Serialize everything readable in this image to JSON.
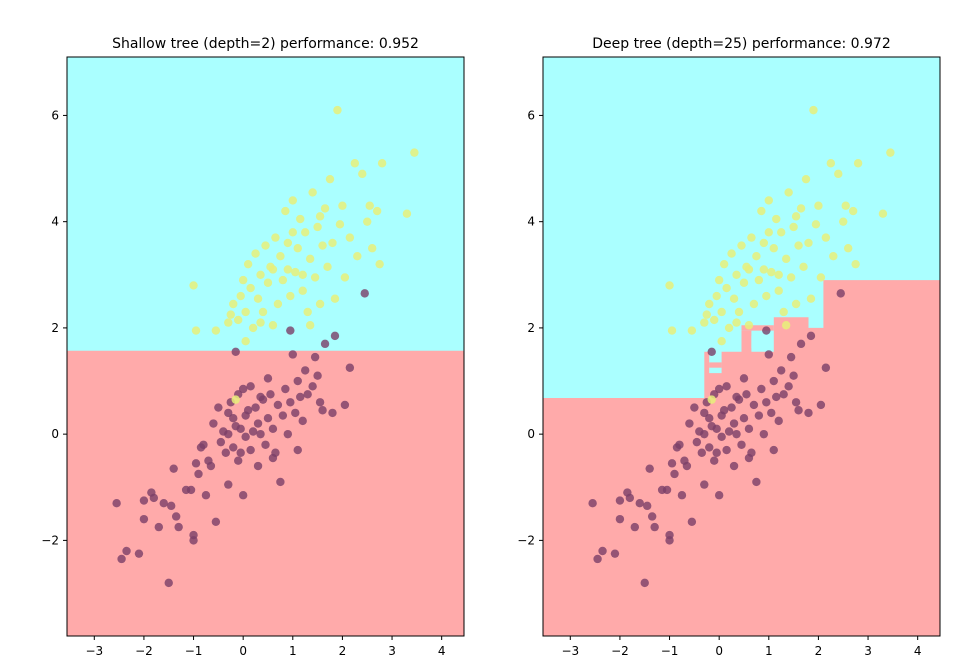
{
  "colors": {
    "region_class0": "#ffaaaa",
    "region_class1": "#aaffff",
    "point_class0": "#7a3f68",
    "point_class1": "#e8f07a"
  },
  "chart_data": [
    {
      "type": "scatter",
      "title": "Shallow tree (depth=2) performance: 0.952",
      "xlabel": "",
      "ylabel": "",
      "xlim": [
        -3.55,
        4.45
      ],
      "ylim": [
        -3.8,
        7.1
      ],
      "xticks": [
        -3,
        -2,
        -1,
        0,
        1,
        2,
        3,
        4
      ],
      "yticks": [
        -2,
        0,
        2,
        4,
        6
      ],
      "grid": false,
      "decision_regions": [
        {
          "class": 0,
          "polygon": [
            [
              -3.55,
              -3.8
            ],
            [
              4.45,
              -3.8
            ],
            [
              4.45,
              1.57
            ],
            [
              -3.55,
              1.57
            ]
          ]
        }
      ]
    },
    {
      "type": "scatter",
      "title": "Deep tree (depth=25) performance: 0.972",
      "xlabel": "",
      "ylabel": "",
      "xlim": [
        -3.55,
        4.45
      ],
      "ylim": [
        -3.8,
        7.1
      ],
      "xticks": [
        -3,
        -2,
        -1,
        0,
        1,
        2,
        3,
        4
      ],
      "yticks": [
        -2,
        0,
        2,
        4,
        6
      ],
      "grid": false,
      "decision_regions": [
        {
          "class": 0,
          "polygon": [
            [
              -3.55,
              -3.8
            ],
            [
              4.45,
              -3.8
            ],
            [
              4.45,
              2.9
            ],
            [
              2.1,
              2.9
            ],
            [
              2.1,
              2.0
            ],
            [
              1.8,
              2.0
            ],
            [
              1.8,
              2.2
            ],
            [
              1.1,
              2.2
            ],
            [
              1.1,
              1.55
            ],
            [
              0.65,
              1.55
            ],
            [
              0.65,
              1.95
            ],
            [
              0.45,
              1.95
            ],
            [
              0.45,
              1.55
            ],
            [
              0.05,
              1.55
            ],
            [
              0.05,
              1.15
            ],
            [
              -0.2,
              1.15
            ],
            [
              -0.2,
              1.55
            ],
            [
              -0.3,
              1.55
            ],
            [
              -0.3,
              0.68
            ],
            [
              -3.55,
              0.68
            ]
          ]
        },
        {
          "class": 0,
          "polygon": [
            [
              -0.2,
              1.25
            ],
            [
              0.05,
              1.25
            ],
            [
              0.05,
              1.35
            ],
            [
              -0.2,
              1.35
            ]
          ]
        },
        {
          "class": 0,
          "polygon": [
            [
              0.45,
              1.95
            ],
            [
              1.1,
              1.95
            ],
            [
              1.1,
              2.05
            ],
            [
              0.45,
              2.05
            ]
          ]
        },
        {
          "class": 1,
          "polygon": [
            [
              0.65,
              1.62
            ],
            [
              0.85,
              1.62
            ],
            [
              0.85,
              1.85
            ],
            [
              0.65,
              1.85
            ]
          ]
        }
      ]
    }
  ],
  "scatter_points": {
    "class0": [
      [
        -2.55,
        -1.3
      ],
      [
        -2.45,
        -2.35
      ],
      [
        -2.35,
        -2.2
      ],
      [
        -2.1,
        -2.25
      ],
      [
        -2.0,
        -1.6
      ],
      [
        -2.0,
        -1.25
      ],
      [
        -1.85,
        -1.1
      ],
      [
        -1.8,
        -1.2
      ],
      [
        -1.7,
        -1.75
      ],
      [
        -1.6,
        -1.3
      ],
      [
        -1.5,
        -2.8
      ],
      [
        -1.45,
        -1.35
      ],
      [
        -1.4,
        -0.65
      ],
      [
        -1.35,
        -1.55
      ],
      [
        -1.3,
        -1.75
      ],
      [
        -1.15,
        -1.05
      ],
      [
        -1.05,
        -1.05
      ],
      [
        -1.0,
        -1.9
      ],
      [
        -1.0,
        -2.0
      ],
      [
        -0.95,
        -0.55
      ],
      [
        -0.9,
        -0.75
      ],
      [
        -0.85,
        -0.25
      ],
      [
        -0.8,
        -0.2
      ],
      [
        -0.75,
        -1.15
      ],
      [
        -0.7,
        -0.5
      ],
      [
        -0.65,
        -0.6
      ],
      [
        -0.6,
        0.2
      ],
      [
        -0.55,
        -1.65
      ],
      [
        -0.5,
        0.5
      ],
      [
        -0.45,
        -0.15
      ],
      [
        -0.4,
        0.05
      ],
      [
        -0.35,
        -0.35
      ],
      [
        -0.3,
        -0.95
      ],
      [
        -0.3,
        0.0
      ],
      [
        -0.25,
        0.6
      ],
      [
        -0.2,
        -0.25
      ],
      [
        -0.2,
        0.3
      ],
      [
        -0.15,
        0.15
      ],
      [
        -0.1,
        -0.5
      ],
      [
        -0.1,
        0.75
      ],
      [
        -0.05,
        0.1
      ],
      [
        -0.05,
        -0.35
      ],
      [
        0.0,
        -1.15
      ],
      [
        0.0,
        0.85
      ],
      [
        0.05,
        0.35
      ],
      [
        0.05,
        -0.05
      ],
      [
        0.1,
        0.45
      ],
      [
        0.15,
        -0.3
      ],
      [
        0.2,
        0.05
      ],
      [
        0.25,
        0.5
      ],
      [
        0.3,
        -0.6
      ],
      [
        0.3,
        0.2
      ],
      [
        0.35,
        0.0
      ],
      [
        0.4,
        0.65
      ],
      [
        0.45,
        -0.2
      ],
      [
        0.5,
        0.3
      ],
      [
        0.5,
        1.05
      ],
      [
        0.55,
        0.75
      ],
      [
        0.6,
        -0.45
      ],
      [
        0.6,
        0.1
      ],
      [
        0.65,
        -0.35
      ],
      [
        0.7,
        0.55
      ],
      [
        0.75,
        -0.9
      ],
      [
        0.8,
        0.35
      ],
      [
        0.85,
        0.85
      ],
      [
        0.9,
        0.0
      ],
      [
        0.95,
        0.6
      ],
      [
        1.0,
        1.5
      ],
      [
        1.05,
        0.4
      ],
      [
        1.1,
        -0.3
      ],
      [
        1.15,
        0.7
      ],
      [
        1.2,
        0.25
      ],
      [
        1.25,
        1.2
      ],
      [
        1.3,
        0.75
      ],
      [
        1.4,
        0.9
      ],
      [
        1.45,
        1.45
      ],
      [
        1.5,
        1.1
      ],
      [
        1.55,
        0.6
      ],
      [
        1.6,
        0.45
      ],
      [
        1.65,
        1.7
      ],
      [
        1.8,
        0.4
      ],
      [
        1.85,
        1.85
      ],
      [
        2.05,
        0.55
      ],
      [
        2.15,
        1.25
      ],
      [
        2.45,
        2.65
      ],
      [
        -0.15,
        1.55
      ],
      [
        0.95,
        1.95
      ],
      [
        1.1,
        1.0
      ],
      [
        0.35,
        0.7
      ],
      [
        -0.3,
        0.4
      ],
      [
        0.15,
        0.9
      ]
    ],
    "class1": [
      [
        -1.0,
        2.8
      ],
      [
        -0.95,
        1.95
      ],
      [
        -0.55,
        1.95
      ],
      [
        -0.3,
        2.1
      ],
      [
        -0.25,
        2.25
      ],
      [
        -0.2,
        2.45
      ],
      [
        -0.1,
        2.15
      ],
      [
        -0.05,
        2.6
      ],
      [
        0.0,
        2.9
      ],
      [
        0.05,
        2.3
      ],
      [
        0.1,
        3.2
      ],
      [
        0.15,
        2.75
      ],
      [
        0.2,
        2.0
      ],
      [
        0.25,
        3.4
      ],
      [
        0.3,
        2.55
      ],
      [
        0.35,
        3.0
      ],
      [
        0.4,
        2.3
      ],
      [
        0.45,
        3.55
      ],
      [
        0.5,
        2.85
      ],
      [
        0.55,
        3.15
      ],
      [
        0.6,
        2.05
      ],
      [
        0.65,
        3.7
      ],
      [
        0.7,
        2.45
      ],
      [
        0.75,
        3.35
      ],
      [
        0.8,
        2.9
      ],
      [
        0.85,
        4.2
      ],
      [
        0.9,
        3.1
      ],
      [
        0.95,
        2.6
      ],
      [
        1.0,
        4.4
      ],
      [
        1.05,
        3.05
      ],
      [
        1.1,
        3.5
      ],
      [
        1.15,
        4.05
      ],
      [
        1.2,
        2.7
      ],
      [
        1.25,
        3.8
      ],
      [
        1.3,
        2.3
      ],
      [
        1.35,
        3.3
      ],
      [
        1.4,
        4.55
      ],
      [
        1.45,
        2.95
      ],
      [
        1.5,
        3.9
      ],
      [
        1.55,
        2.45
      ],
      [
        1.6,
        3.55
      ],
      [
        1.65,
        4.25
      ],
      [
        1.7,
        3.15
      ],
      [
        1.75,
        4.8
      ],
      [
        1.8,
        3.6
      ],
      [
        1.85,
        2.55
      ],
      [
        1.9,
        6.1
      ],
      [
        1.95,
        3.95
      ],
      [
        2.0,
        4.3
      ],
      [
        2.05,
        2.95
      ],
      [
        2.15,
        3.7
      ],
      [
        2.25,
        5.1
      ],
      [
        2.3,
        3.35
      ],
      [
        2.4,
        4.9
      ],
      [
        2.5,
        4.0
      ],
      [
        2.55,
        4.3
      ],
      [
        2.6,
        3.5
      ],
      [
        2.7,
        4.2
      ],
      [
        2.75,
        3.2
      ],
      [
        2.8,
        5.1
      ],
      [
        3.3,
        4.15
      ],
      [
        3.45,
        5.3
      ],
      [
        1.35,
        2.05
      ],
      [
        0.05,
        1.75
      ],
      [
        -0.15,
        0.65
      ],
      [
        0.35,
        2.1
      ],
      [
        0.9,
        3.6
      ],
      [
        1.2,
        3.0
      ],
      [
        0.6,
        3.1
      ],
      [
        1.0,
        3.8
      ],
      [
        1.55,
        4.1
      ]
    ]
  }
}
